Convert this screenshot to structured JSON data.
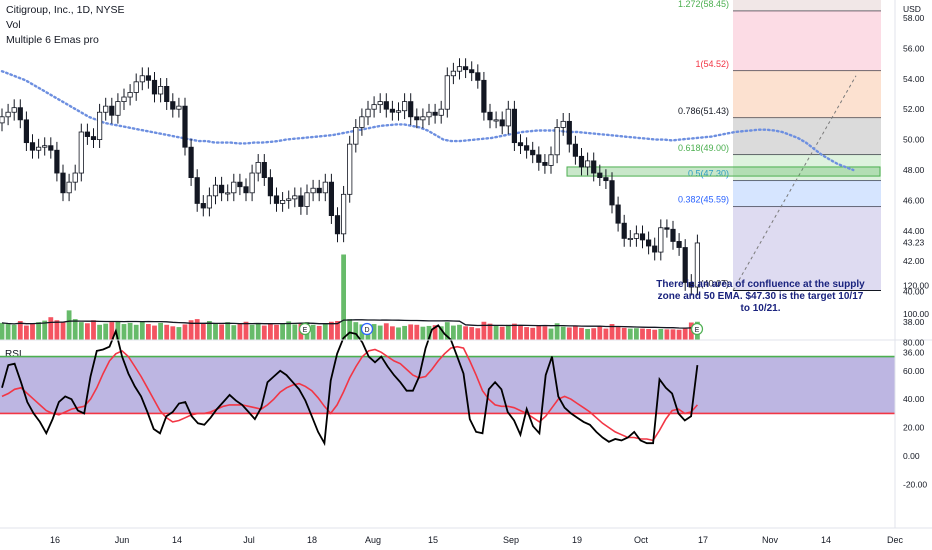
{
  "legend": {
    "symbol_line": "Citigroup, Inc., 1D, NYSE",
    "vol_label": "Vol",
    "ema_label": "Multiple 6 Emas pro"
  },
  "rsi_label": "RSI",
  "currency": "USD",
  "annotation": "There is an area of confluence at the supply zone and 50 EMA. $47.30 is the target 10/17 to 10/21.",
  "colors": {
    "up": "#4caf50",
    "down": "#f23645",
    "candle": "#131722",
    "ema": "#6d8fe0",
    "rsi_band": "#b2a9dd",
    "rsi_line": "#000000",
    "rsi_ma": "#f23645",
    "rsi_upper": "#4caf50",
    "rsi_lower": "#f23645",
    "zone": "#4caf50"
  },
  "chart_data": [
    {
      "type": "candlestick",
      "x_ticks": [
        "16",
        "Jun",
        "14",
        "Jul",
        "18",
        "Aug",
        "15",
        "Sep",
        "19",
        "Oct",
        "17",
        "Nov",
        "14",
        "Dec"
      ],
      "y_ticks": [
        36,
        38,
        40,
        42,
        44,
        46,
        48,
        50,
        52,
        54,
        56,
        58
      ],
      "ylim": [
        35,
        61.5
      ],
      "last_price": "43.23",
      "close": [
        51.5,
        51.8,
        52.1,
        51.3,
        49.8,
        49.3,
        49.5,
        49.6,
        49.3,
        47.8,
        46.5,
        47.2,
        47.8,
        50.5,
        50.2,
        50.0,
        51.8,
        52.2,
        51.6,
        52.5,
        52.8,
        53.1,
        53.8,
        54.2,
        53.9,
        53.0,
        53.5,
        52.5,
        52.0,
        52.2,
        49.5,
        47.5,
        45.8,
        45.5,
        46.3,
        47.0,
        46.5,
        46.5,
        47.2,
        46.9,
        46.5,
        47.8,
        48.5,
        47.5,
        46.3,
        45.8,
        46.0,
        46.1,
        46.3,
        45.6,
        46.5,
        46.8,
        46.5,
        47.2,
        45.0,
        43.8,
        46.4,
        49.7,
        50.8,
        51.5,
        52.0,
        52.3,
        52.5,
        52.0,
        51.8,
        51.9,
        52.5,
        51.5,
        51.3,
        51.5,
        51.8,
        51.6,
        52.0,
        54.2,
        54.5,
        54.8,
        54.6,
        54.4,
        53.9,
        51.8,
        51.3,
        51.3,
        50.9,
        52.0,
        49.8,
        49.6,
        49.3,
        49.0,
        48.5,
        48.3,
        49.0,
        50.8,
        51.2,
        49.7,
        48.9,
        48.2,
        48.6,
        47.8,
        47.5,
        47.3,
        45.7,
        44.5,
        43.5,
        43.5,
        43.8,
        43.4,
        43.0,
        42.6,
        44.2,
        44.1,
        43.3,
        42.9,
        40.6,
        40.3,
        43.2
      ],
      "volume_relative": [
        0.45,
        0.42,
        0.4,
        0.5,
        0.38,
        0.44,
        0.47,
        0.51,
        0.6,
        0.52,
        0.48,
        0.78,
        0.55,
        0.47,
        0.44,
        0.52,
        0.4,
        0.43,
        0.47,
        0.5,
        0.42,
        0.45,
        0.4,
        0.48,
        0.42,
        0.38,
        0.45,
        0.4,
        0.36,
        0.34,
        0.41,
        0.52,
        0.55,
        0.43,
        0.5,
        0.44,
        0.41,
        0.47,
        0.39,
        0.42,
        0.48,
        0.4,
        0.45,
        0.38,
        0.42,
        0.4,
        0.44,
        0.49,
        0.41,
        0.43,
        0.47,
        0.4,
        0.37,
        0.42,
        0.48,
        0.5,
        2.25,
        0.55,
        0.47,
        0.41,
        0.39,
        0.42,
        0.38,
        0.44,
        0.36,
        0.33,
        0.37,
        0.41,
        0.4,
        0.35,
        0.37,
        0.39,
        0.36,
        0.47,
        0.38,
        0.4,
        0.36,
        0.34,
        0.31,
        0.48,
        0.43,
        0.37,
        0.35,
        0.4,
        0.43,
        0.37,
        0.34,
        0.32,
        0.38,
        0.36,
        0.3,
        0.44,
        0.35,
        0.33,
        0.36,
        0.32,
        0.29,
        0.31,
        0.37,
        0.3,
        0.42,
        0.34,
        0.32,
        0.3,
        0.31,
        0.3,
        0.29,
        0.27,
        0.29,
        0.28,
        0.28,
        0.27,
        0.3,
        0.46,
        0.48
      ],
      "ema": [
        54.5,
        54.3,
        54.1,
        53.9,
        53.6,
        53.3,
        53.0,
        52.7,
        52.4,
        52.1,
        51.8,
        51.5,
        51.3,
        51.1,
        51.0,
        50.9,
        50.8,
        50.7,
        50.6,
        50.5,
        50.4,
        50.3,
        50.2,
        50.1,
        50.0,
        49.9,
        49.9,
        49.8,
        49.8,
        49.8,
        49.75,
        49.75,
        49.8,
        49.8,
        49.85,
        49.9,
        50.0,
        50.05,
        50.1,
        50.15,
        50.2,
        50.25,
        50.3,
        50.4,
        50.5,
        50.6,
        50.7,
        50.8,
        50.9,
        50.95,
        51.0,
        51.0,
        50.9,
        50.8,
        50.6,
        50.3,
        50.0,
        49.9,
        49.9,
        49.95,
        50.0,
        50.05,
        50.1,
        50.2,
        50.3,
        50.4,
        50.5,
        50.55,
        50.6,
        50.6,
        50.6,
        50.55,
        50.5,
        50.5,
        50.45,
        50.4,
        50.35,
        50.3,
        50.25,
        50.2,
        50.15,
        50.1,
        50.05,
        50.0,
        50.0,
        49.95,
        50.0,
        50.05,
        50.1,
        50.15,
        50.2,
        50.3,
        50.4,
        50.5,
        50.55,
        50.6,
        50.65,
        50.65,
        50.6,
        50.5,
        50.3,
        50.1,
        49.8,
        49.4,
        49.0,
        48.7,
        48.4,
        48.2,
        48.0
      ],
      "fib_levels": [
        {
          "label": "1.272(58.45)",
          "value": 58.45,
          "fill": "#efe3e3",
          "text_color": "#4caf50"
        },
        {
          "label": "1(54.52)",
          "value": 54.52,
          "fill": "#fbd6e0",
          "text_color": "#f23645"
        },
        {
          "label": "0.786(51.43)",
          "value": 51.43,
          "fill": "#fbdcc8",
          "text_color": "#131722"
        },
        {
          "label": "0.618(49.00)",
          "value": 49.0,
          "fill": "#d5d5d5",
          "text_color": "#4caf50"
        },
        {
          "label": "0.5(47.30)",
          "value": 47.3,
          "fill": "#d8f0d8",
          "text_color": "#2196f3"
        },
        {
          "label": "0.382(45.59)",
          "value": 45.59,
          "fill": "#cfe0ff",
          "text_color": "#2962ff"
        },
        {
          "label": "0(40.07)",
          "value": 40.07,
          "fill": "#d8d5ee",
          "text_color": "#131722"
        }
      ],
      "fib_top": 61.5,
      "supply_zone": [
        47.6,
        48.2
      ]
    },
    {
      "type": "line",
      "name": "RSI",
      "y_ticks": [
        -20,
        0,
        20,
        40,
        60,
        80,
        100,
        120
      ],
      "ylim": [
        -25,
        125
      ],
      "upper_band": 70,
      "lower_band": 30,
      "rsi": [
        48,
        64,
        65,
        52,
        38,
        30,
        24,
        16,
        26,
        38,
        42,
        40,
        32,
        30,
        56,
        74,
        75,
        77,
        88,
        70,
        58,
        49,
        42,
        31,
        19,
        16,
        28,
        31,
        37,
        38,
        28,
        23,
        22,
        27,
        33,
        38,
        43,
        39,
        36,
        31,
        26,
        34,
        52,
        56,
        60,
        57,
        52,
        47,
        39,
        28,
        17,
        9,
        53,
        72,
        83,
        87,
        86,
        80,
        70,
        66,
        70,
        63,
        57,
        52,
        46,
        46,
        56,
        76,
        89,
        92,
        86,
        82,
        70,
        58,
        26,
        17,
        16,
        47,
        52,
        47,
        31,
        25,
        15,
        33,
        21,
        16,
        57,
        70,
        42,
        34,
        30,
        27,
        24,
        22,
        17,
        13,
        10,
        12,
        11,
        13,
        17,
        11,
        9,
        9,
        54,
        48,
        44,
        30,
        25,
        28,
        64
      ],
      "rsi_ma": [
        42,
        44,
        47,
        48,
        44,
        40,
        36,
        32,
        30,
        29,
        31,
        33,
        34,
        35,
        40,
        48,
        58,
        67,
        72,
        74,
        70,
        63,
        56,
        48,
        40,
        32,
        27,
        24,
        25,
        27,
        29,
        30,
        30,
        31,
        33,
        35,
        36,
        36,
        36,
        35,
        34,
        33,
        36,
        40,
        45,
        48,
        50,
        51,
        49,
        46,
        41,
        35,
        30,
        36,
        45,
        55,
        63,
        70,
        74,
        75,
        73,
        70,
        67,
        65,
        61,
        57,
        55,
        56,
        61,
        67,
        72,
        76,
        77,
        76,
        67,
        57,
        46,
        40,
        36,
        35,
        35,
        34,
        32,
        30,
        27,
        24,
        28,
        34,
        40,
        42,
        40,
        37,
        34,
        31,
        27,
        23,
        20,
        17,
        15,
        13,
        13,
        12,
        12,
        11,
        18,
        26,
        32,
        33,
        30,
        31,
        36
      ]
    }
  ]
}
